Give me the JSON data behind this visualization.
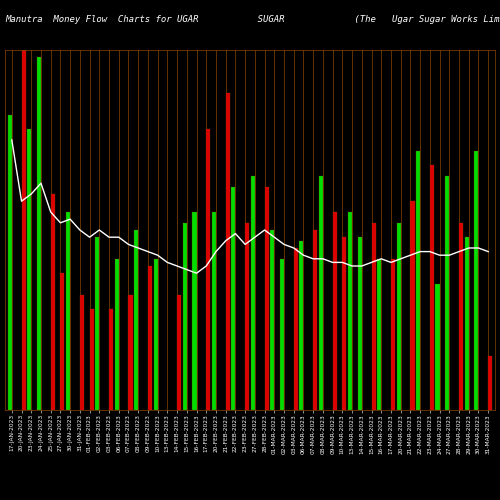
{
  "title": "Manutra  Money Flow  Charts for UGAR           SUGAR             (The   Ugar Sugar Works Limit",
  "background_color": "#000000",
  "bar_border_color": "#8B4500",
  "line_color": "#ffffff",
  "green_color": "#00dd00",
  "red_color": "#dd0000",
  "categories": [
    "17-JAN-2023",
    "20-JAN-2023",
    "23-JAN-2023",
    "24-JAN-2023",
    "25-JAN-2023",
    "27-JAN-2023",
    "30-JAN-2023",
    "31-JAN-2023",
    "01-FEB-2023",
    "02-FEB-2023",
    "03-FEB-2023",
    "06-FEB-2023",
    "07-FEB-2023",
    "08-FEB-2023",
    "09-FEB-2023",
    "10-FEB-2023",
    "13-FEB-2023",
    "14-FEB-2023",
    "15-FEB-2023",
    "16-FEB-2023",
    "17-FEB-2023",
    "20-FEB-2023",
    "21-FEB-2023",
    "22-FEB-2023",
    "23-FEB-2023",
    "27-FEB-2023",
    "28-FEB-2023",
    "01-MAR-2023",
    "02-MAR-2023",
    "03-MAR-2023",
    "06-MAR-2023",
    "07-MAR-2023",
    "08-MAR-2023",
    "09-MAR-2023",
    "10-MAR-2023",
    "13-MAR-2023",
    "14-MAR-2023",
    "15-MAR-2023",
    "16-MAR-2023",
    "17-MAR-2023",
    "20-MAR-2023",
    "21-MAR-2023",
    "22-MAR-2023",
    "23-MAR-2023",
    "24-MAR-2023",
    "27-MAR-2023",
    "28-MAR-2023",
    "29-MAR-2023",
    "30-MAR-2023",
    "31-MAR-2023"
  ],
  "bar_colors": [
    "G",
    "R",
    "G",
    "G",
    "R",
    "R",
    "G",
    "R",
    "R",
    "G",
    "R",
    "G",
    "R",
    "G",
    "R",
    "G",
    "G",
    "R",
    "G",
    "G",
    "R",
    "G",
    "R",
    "G",
    "R",
    "G",
    "R",
    "G",
    "G",
    "R",
    "G",
    "R",
    "G",
    "R",
    "R",
    "G",
    "G",
    "R",
    "G",
    "R",
    "G",
    "R",
    "G",
    "R",
    "G",
    "G",
    "R",
    "G",
    "G",
    "R"
  ],
  "green_values": [
    82,
    0,
    78,
    98,
    0,
    0,
    55,
    0,
    0,
    48,
    0,
    42,
    0,
    50,
    0,
    42,
    0,
    0,
    52,
    55,
    0,
    55,
    0,
    62,
    0,
    65,
    0,
    50,
    42,
    0,
    47,
    0,
    65,
    0,
    0,
    55,
    48,
    0,
    42,
    0,
    52,
    0,
    72,
    0,
    35,
    65,
    0,
    48,
    72,
    0
  ],
  "red_values": [
    0,
    100,
    0,
    0,
    60,
    38,
    0,
    32,
    28,
    0,
    28,
    0,
    32,
    0,
    40,
    0,
    0,
    32,
    0,
    0,
    78,
    0,
    88,
    0,
    52,
    0,
    62,
    0,
    0,
    45,
    0,
    50,
    0,
    55,
    48,
    0,
    0,
    52,
    0,
    42,
    0,
    58,
    0,
    68,
    0,
    0,
    52,
    0,
    0,
    15
  ],
  "line_values": [
    75,
    58,
    60,
    63,
    55,
    52,
    53,
    50,
    48,
    50,
    48,
    48,
    46,
    45,
    44,
    43,
    41,
    40,
    39,
    38,
    40,
    44,
    47,
    49,
    46,
    48,
    50,
    48,
    46,
    45,
    43,
    42,
    42,
    41,
    41,
    40,
    40,
    41,
    42,
    41,
    42,
    43,
    44,
    44,
    43,
    43,
    44,
    45,
    45,
    44
  ],
  "ylim": [
    0,
    100
  ],
  "title_fontsize": 6.5,
  "tick_fontsize": 4.2
}
